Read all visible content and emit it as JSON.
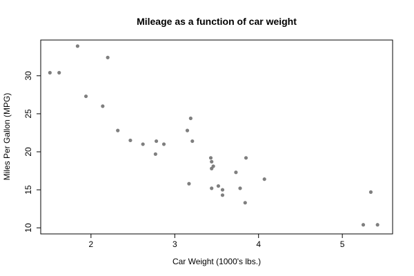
{
  "chart_data": {
    "type": "scatter",
    "title": "Mileage as a function of car weight",
    "xlabel": "Car Weight (1000's lbs.)",
    "ylabel": "Miles Per Gallon (MPG)",
    "xlim": [
      1.4,
      5.6
    ],
    "ylim": [
      9.2,
      34.7
    ],
    "xticks": [
      2,
      3,
      4,
      5
    ],
    "yticks": [
      10,
      15,
      20,
      25,
      30
    ],
    "grid": false,
    "legend": "none",
    "point_color": "#7f7f7f",
    "points": [
      {
        "x": 1.51,
        "y": 30.4
      },
      {
        "x": 1.62,
        "y": 30.4
      },
      {
        "x": 1.84,
        "y": 33.9
      },
      {
        "x": 1.94,
        "y": 27.3
      },
      {
        "x": 2.14,
        "y": 26.0
      },
      {
        "x": 2.2,
        "y": 32.4
      },
      {
        "x": 2.32,
        "y": 22.8
      },
      {
        "x": 2.47,
        "y": 21.5
      },
      {
        "x": 2.62,
        "y": 21.0
      },
      {
        "x": 2.77,
        "y": 19.7
      },
      {
        "x": 2.78,
        "y": 21.4
      },
      {
        "x": 2.87,
        "y": 21.0
      },
      {
        "x": 3.15,
        "y": 22.8
      },
      {
        "x": 3.17,
        "y": 15.8
      },
      {
        "x": 3.19,
        "y": 24.4
      },
      {
        "x": 3.21,
        "y": 21.4
      },
      {
        "x": 3.43,
        "y": 19.2
      },
      {
        "x": 3.44,
        "y": 18.7
      },
      {
        "x": 3.44,
        "y": 17.8
      },
      {
        "x": 3.44,
        "y": 15.2
      },
      {
        "x": 3.46,
        "y": 18.1
      },
      {
        "x": 3.52,
        "y": 15.5
      },
      {
        "x": 3.57,
        "y": 15.0
      },
      {
        "x": 3.57,
        "y": 14.3
      },
      {
        "x": 3.73,
        "y": 17.3
      },
      {
        "x": 3.78,
        "y": 15.2
      },
      {
        "x": 3.84,
        "y": 13.3
      },
      {
        "x": 3.85,
        "y": 19.2
      },
      {
        "x": 4.07,
        "y": 16.4
      },
      {
        "x": 5.25,
        "y": 10.4
      },
      {
        "x": 5.34,
        "y": 14.7
      },
      {
        "x": 5.42,
        "y": 10.4
      }
    ]
  }
}
